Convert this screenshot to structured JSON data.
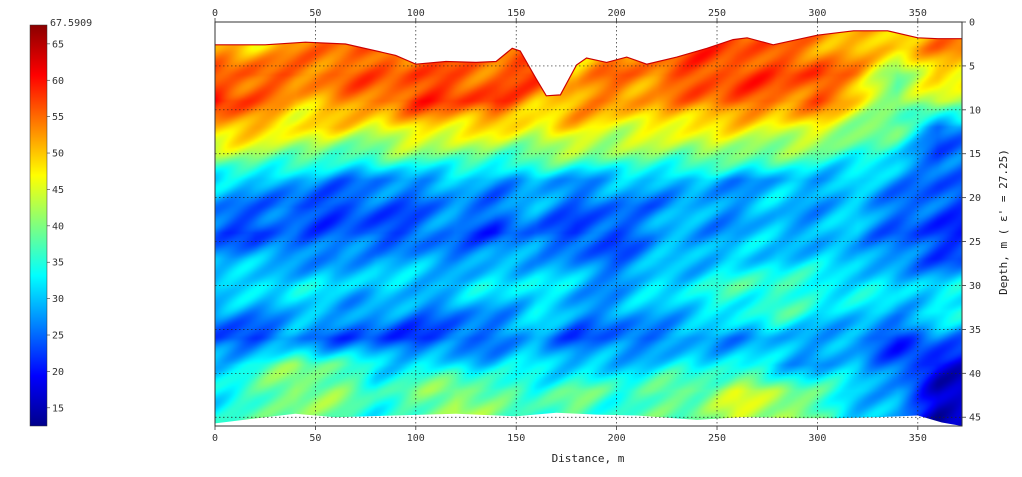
{
  "chart_data": {
    "type": "heatmap",
    "title": "",
    "xlabel": "Distance, m",
    "ylabel": "Depth, m ( ε' = 27.25)",
    "xlim": [
      0,
      372
    ],
    "ylim": [
      0,
      46
    ],
    "y_inverted": true,
    "x_ticks": [
      0,
      50,
      100,
      150,
      200,
      250,
      300,
      350
    ],
    "x_tick_labels": [
      "0",
      "50",
      "100",
      "150",
      "200",
      "250",
      "300",
      "350"
    ],
    "y_ticks": [
      0,
      5,
      10,
      15,
      20,
      25,
      30,
      35,
      40,
      45
    ],
    "y_tick_labels": [
      "0",
      "5",
      "10",
      "15",
      "20",
      "25",
      "30",
      "35",
      "40",
      "45"
    ],
    "grid": true,
    "colorbar": {
      "min": 12.5,
      "max": 67.5909,
      "max_label": "67.5909",
      "ticks": [
        15,
        20,
        25,
        30,
        35,
        40,
        45,
        50,
        55,
        60,
        65
      ],
      "tick_labels": [
        "15",
        "20",
        "25",
        "30",
        "35",
        "40",
        "45",
        "50",
        "55",
        "60",
        "65"
      ],
      "colors": [
        "#00008b",
        "#0000ff",
        "#0080ff",
        "#00ffff",
        "#7fff7f",
        "#ffff00",
        "#ff8000",
        "#ff0000",
        "#8b0000"
      ]
    },
    "surface_profile": {
      "x": [
        0,
        25,
        45,
        65,
        90,
        100,
        115,
        130,
        140,
        148,
        152,
        160,
        165,
        172,
        180,
        185,
        195,
        205,
        215,
        230,
        245,
        258,
        265,
        278,
        300,
        318,
        335,
        350,
        360,
        372
      ],
      "depth": [
        2.6,
        2.6,
        2.3,
        2.5,
        3.8,
        4.8,
        4.5,
        4.6,
        4.5,
        3.0,
        3.3,
        6.5,
        8.4,
        8.3,
        4.9,
        4.1,
        4.6,
        4.0,
        4.8,
        4.0,
        3.0,
        2.0,
        1.8,
        2.6,
        1.5,
        1.0,
        1.0,
        1.8,
        1.9,
        1.9
      ]
    },
    "bottom_profile": {
      "x": [
        0,
        25,
        40,
        60,
        90,
        120,
        150,
        170,
        190,
        210,
        240,
        262,
        290,
        310,
        330,
        350,
        362,
        372
      ],
      "depth": [
        45.7,
        45.0,
        44.6,
        45.0,
        44.8,
        44.6,
        44.9,
        44.5,
        44.7,
        44.8,
        45.3,
        45.0,
        45.1,
        45.1,
        45.0,
        44.8,
        45.6,
        46.0
      ]
    },
    "values_grid": {
      "x": [
        0,
        20,
        40,
        60,
        80,
        100,
        120,
        140,
        160,
        180,
        200,
        220,
        240,
        260,
        280,
        300,
        320,
        340,
        360
      ],
      "depth": [
        3,
        6,
        9,
        12,
        15,
        18,
        21,
        24,
        27,
        30,
        33,
        36,
        39,
        42,
        45
      ],
      "values": [
        [
          52,
          50,
          52,
          55,
          55,
          53,
          52,
          54,
          55,
          52,
          50,
          53,
          56,
          57,
          55,
          54,
          50,
          50,
          53
        ],
        [
          55,
          57,
          55,
          56,
          55,
          57,
          56,
          56,
          58,
          50,
          55,
          55,
          57,
          58,
          56,
          58,
          52,
          40,
          48
        ],
        [
          61,
          55,
          50,
          52,
          55,
          58,
          57,
          58,
          51,
          52,
          54,
          51,
          55,
          56,
          55,
          56,
          48,
          38,
          45
        ],
        [
          52,
          50,
          48,
          48,
          46,
          48,
          49,
          48,
          46,
          49,
          46,
          46,
          48,
          47,
          46,
          46,
          42,
          38,
          26
        ],
        [
          42,
          42,
          40,
          37,
          38,
          40,
          40,
          38,
          40,
          41,
          40,
          40,
          41,
          40,
          40,
          38,
          35,
          33,
          24
        ],
        [
          30,
          31,
          28,
          27,
          26,
          28,
          29,
          28,
          29,
          28,
          29,
          30,
          29,
          28,
          29,
          29,
          30,
          28,
          24
        ],
        [
          27,
          26,
          23,
          23,
          24,
          25,
          27,
          26,
          28,
          25,
          25,
          27,
          28,
          28,
          30,
          29,
          30,
          26,
          23
        ],
        [
          24,
          22,
          26,
          24,
          23,
          24,
          26,
          22,
          26,
          22,
          23,
          29,
          29,
          28,
          30,
          28,
          30,
          24,
          22
        ],
        [
          30,
          28,
          28,
          26,
          30,
          28,
          27,
          28,
          30,
          26,
          25,
          28,
          30,
          30,
          32,
          30,
          30,
          26,
          24
        ],
        [
          31,
          32,
          33,
          30,
          32,
          30,
          32,
          32,
          33,
          30,
          28,
          32,
          33,
          36,
          37,
          34,
          34,
          30,
          32
        ],
        [
          27,
          28,
          30,
          30,
          27,
          27,
          26,
          28,
          32,
          28,
          27,
          30,
          31,
          34,
          36,
          33,
          31,
          30,
          33
        ],
        [
          22,
          23,
          26,
          24,
          23,
          22,
          23,
          26,
          28,
          24,
          24,
          26,
          27,
          28,
          29,
          29,
          26,
          22,
          26
        ],
        [
          31,
          35,
          40,
          37,
          32,
          33,
          32,
          30,
          32,
          30,
          30,
          32,
          32,
          33,
          30,
          28,
          30,
          24,
          18
        ],
        [
          33,
          36,
          42,
          40,
          35,
          38,
          42,
          38,
          36,
          38,
          36,
          38,
          40,
          44,
          42,
          36,
          32,
          28,
          17
        ],
        [
          34,
          36,
          40,
          38,
          35,
          36,
          44,
          37,
          36,
          38,
          36,
          37,
          38,
          44,
          44,
          38,
          30,
          27,
          16
        ]
      ]
    }
  }
}
